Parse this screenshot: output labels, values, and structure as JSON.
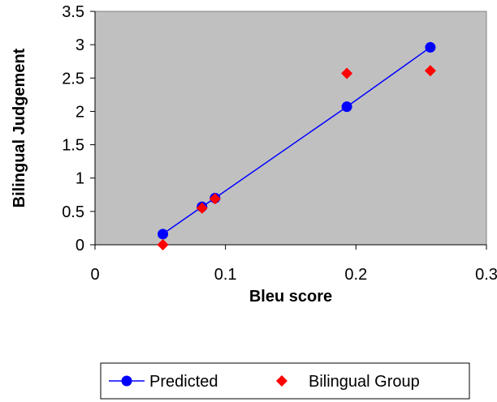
{
  "chart_data": {
    "type": "scatter",
    "xlabel": "Bleu score",
    "ylabel": "Bilingual Judgement",
    "xlim": [
      0,
      0.3
    ],
    "ylim": [
      0,
      3.5
    ],
    "x_ticks": [
      "0",
      "0.1",
      "0.2",
      "0.3"
    ],
    "y_ticks": [
      "0",
      "0.5",
      "1",
      "1.5",
      "2",
      "2.5",
      "3",
      "3.5"
    ],
    "grid": false,
    "legend_position": "bottom",
    "series": [
      {
        "name": "Predicted",
        "marker": "circle",
        "line": true,
        "color": "#0000ff",
        "points": [
          [
            0.052,
            0.16
          ],
          [
            0.082,
            0.57
          ],
          [
            0.092,
            0.7
          ],
          [
            0.193,
            2.07
          ],
          [
            0.257,
            2.96
          ]
        ]
      },
      {
        "name": "Bilingual Group",
        "marker": "diamond",
        "line": false,
        "color": "#ff0000",
        "points": [
          [
            0.052,
            0.0
          ],
          [
            0.082,
            0.55
          ],
          [
            0.092,
            0.69
          ],
          [
            0.193,
            2.57
          ],
          [
            0.257,
            2.61
          ]
        ]
      }
    ],
    "plot_background": "#c0c0c0"
  }
}
